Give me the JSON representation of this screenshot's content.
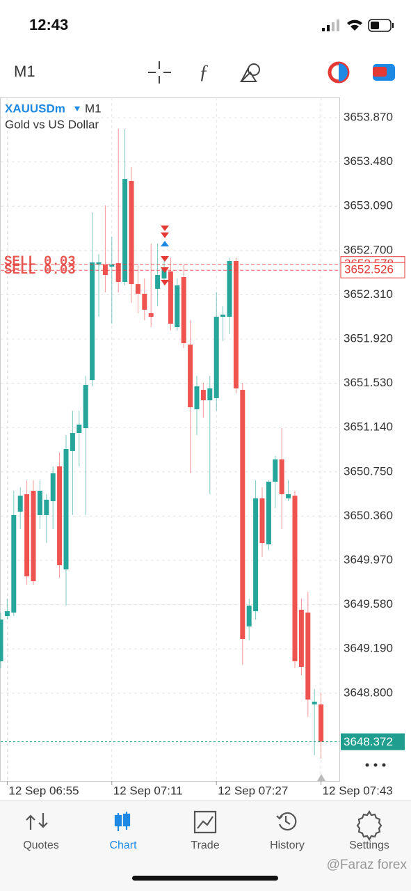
{
  "status_bar": {
    "time": "12:43"
  },
  "toolbar": {
    "timeframe": "M1"
  },
  "chart_data": {
    "type": "candlestick",
    "symbol": "XAUUSDm",
    "timeframe": "M1",
    "description": "Gold vs US Dollar",
    "categories": [
      null,
      "12 Sep 06:55",
      null,
      null,
      null,
      null,
      null,
      null,
      null,
      null,
      null,
      null,
      null,
      null,
      null,
      null,
      null,
      "12 Sep 07:11",
      null,
      null,
      null,
      null,
      null,
      null,
      null,
      null,
      null,
      null,
      null,
      null,
      null,
      null,
      null,
      "12 Sep 07:27",
      null,
      null,
      null,
      null,
      null,
      null,
      null,
      null,
      null,
      null,
      null,
      null,
      null,
      null,
      null,
      "12 Sep 07:43"
    ],
    "open": [
      3649.081,
      3649.479,
      3649.51,
      3650.399,
      3650.553,
      3650.583,
      3650.369,
      3650.369,
      3650.491,
      3650.798,
      3649.89,
      3650.933,
      3651.092,
      3651.135,
      3651.558,
      3652.576,
      3652.576,
      3652.558,
      3652.588,
      3652.423,
      3653.312,
      3652.404,
      3652.319,
      3652.147,
      3652.362,
      3652.453,
      3652.515,
      3652.024,
      3652.466,
      3651.871,
      3651.301,
      3651.472,
      3651.38,
      3651.399,
      3652.116,
      3652.116,
      3652.607,
      3651.472,
      3649.388,
      3649.522,
      3650.516,
      3650.111,
      3650.663,
      3650.859,
      3650.516,
      3650.54,
      3649.535,
      3649.51,
      3648.701,
      3648.701
    ],
    "high": [
      3649.51,
      3649.633,
      3650.583,
      3650.614,
      3650.675,
      3650.675,
      3650.675,
      3650.553,
      3650.798,
      3650.92,
      3651.074,
      3651.288,
      3651.288,
      3651.595,
      3653.036,
      3652.668,
      3653.097,
      3652.821,
      3653.772,
      3653.772,
      3653.435,
      3652.576,
      3652.453,
      3652.76,
      3652.76,
      3652.637,
      3652.637,
      3652.453,
      3652.576,
      3652.086,
      3651.595,
      3651.534,
      3651.595,
      3652.331,
      3652.208,
      3652.637,
      3652.637,
      3651.534,
      3649.633,
      3650.675,
      3650.614,
      3650.675,
      3650.89,
      3651.135,
      3650.675,
      3650.583,
      3649.633,
      3649.694,
      3648.836,
      3648.805
    ],
    "low": [
      3649.02,
      3649.449,
      3649.479,
      3650.246,
      3649.755,
      3649.755,
      3650.246,
      3650.123,
      3650.246,
      3649.817,
      3649.571,
      3650.369,
      3650.798,
      3650.369,
      3651.503,
      3652.116,
      3652.331,
      3652.055,
      3652.331,
      3652.392,
      3652.239,
      3652.147,
      3652.086,
      3652.024,
      3652.208,
      3652.392,
      3651.994,
      3651.994,
      3651.84,
      3650.737,
      3651.074,
      3651.227,
      3650.553,
      3651.288,
      3651.902,
      3651.963,
      3651.442,
      3649.05,
      3649.265,
      3649.449,
      3650.001,
      3650.062,
      3650.43,
      3650.246,
      3650.491,
      3649.02,
      3648.958,
      3648.59,
      3648.253,
      3648.222
    ],
    "close": [
      3649.449,
      3649.522,
      3650.369,
      3650.54,
      3649.829,
      3649.786,
      3650.583,
      3650.504,
      3650.737,
      3649.927,
      3650.951,
      3651.092,
      3651.166,
      3651.515,
      3652.595,
      3652.595,
      3652.484,
      3652.576,
      3652.423,
      3653.33,
      3652.404,
      3652.319,
      3652.178,
      3652.116,
      3652.484,
      3652.545,
      3652.055,
      3652.392,
      3651.883,
      3651.319,
      3651.503,
      3651.38,
      3651.485,
      3652.116,
      3652.135,
      3652.607,
      3651.485,
      3649.277,
      3649.571,
      3650.516,
      3650.123,
      3650.663,
      3650.859,
      3650.553,
      3650.553,
      3649.081,
      3649.032,
      3648.744,
      3648.725,
      3648.372
    ],
    "up_color": "#26a69a",
    "down_color": "#ef5350",
    "ylim": [
      3648.026,
      3654.048
    ],
    "yticks": [
      {
        "value": 3653.87,
        "label": "3653.870"
      },
      {
        "value": 3653.48,
        "label": "3653.480"
      },
      {
        "value": 3653.09,
        "label": "3653.090"
      },
      {
        "value": 3652.7,
        "label": "3652.700"
      },
      {
        "value": 3652.31,
        "label": "3652.310"
      },
      {
        "value": 3651.92,
        "label": "3651.920"
      },
      {
        "value": 3651.53,
        "label": "3651.530"
      },
      {
        "value": 3651.14,
        "label": "3651.140"
      },
      {
        "value": 3650.75,
        "label": "3650.750"
      },
      {
        "value": 3650.36,
        "label": "3650.360"
      },
      {
        "value": 3649.97,
        "label": "3649.970"
      },
      {
        "value": 3649.58,
        "label": "3649.580"
      },
      {
        "value": 3649.19,
        "label": "3649.190"
      },
      {
        "value": 3648.8,
        "label": "3648.800"
      }
    ],
    "grid": true,
    "orders": [
      {
        "label": "SELL 0.03",
        "price": 3652.578
      },
      {
        "label": "SELL 0.03",
        "price": 3652.526
      }
    ],
    "order_color": "#e53935",
    "current_price": 3648.372,
    "current_price_color": "#1f9e8f"
  },
  "tab_bar": {
    "tabs": [
      "Quotes",
      "Chart",
      "Trade",
      "History",
      "Settings"
    ],
    "active": 1,
    "active_color": "#1e88e5"
  },
  "watermark": "@Faraz forex"
}
